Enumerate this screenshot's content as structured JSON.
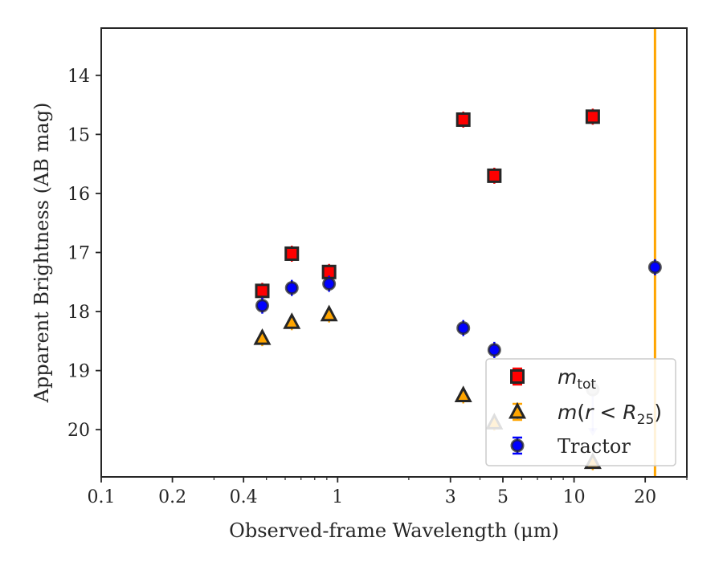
{
  "chart_data": {
    "type": "scatter",
    "xlabel": "Observed-frame Wavelength (μm)",
    "ylabel": "Apparent Brightness (AB mag)",
    "x_scale": "log",
    "xlim": [
      0.1,
      30
    ],
    "ylim": [
      20.8,
      13.2
    ],
    "y_inverted": true,
    "x_ticks": [
      0.1,
      0.2,
      0.4,
      1,
      3,
      5,
      10,
      20
    ],
    "x_tick_labels": [
      "0.1",
      "0.2",
      "0.4",
      "1",
      "3",
      "5",
      "10",
      "20"
    ],
    "y_ticks": [
      14,
      15,
      16,
      17,
      18,
      19,
      20
    ],
    "y_tick_labels": [
      "14",
      "15",
      "16",
      "17",
      "18",
      "19",
      "20"
    ],
    "grid": false,
    "legend_position": "bottom-right",
    "vertical_line": {
      "x": 22,
      "color": "#ffa500"
    },
    "series": [
      {
        "name": "m_tot",
        "legend": {
          "symbol": "m",
          "subscript": "tot"
        },
        "marker": "square",
        "face_color": "#ff0000",
        "edge_color": "#262626",
        "error_color": "#ff0000",
        "points": [
          {
            "x": 0.48,
            "y": 17.65
          },
          {
            "x": 0.64,
            "y": 17.02
          },
          {
            "x": 0.92,
            "y": 17.33
          },
          {
            "x": 3.4,
            "y": 14.75
          },
          {
            "x": 4.6,
            "y": 15.7
          },
          {
            "x": 12.0,
            "y": 14.7
          }
        ]
      },
      {
        "name": "m(r<R25)",
        "legend": {
          "symbol": "m",
          "open": "(",
          "var": "r",
          "lt": " < ",
          "R": "R",
          "subscript": "25",
          "close": ")"
        },
        "marker": "triangle",
        "face_color": "#ffa500",
        "edge_color": "#262626",
        "error_color": "#ffa500",
        "points": [
          {
            "x": 0.48,
            "y": 18.45
          },
          {
            "x": 0.64,
            "y": 18.18
          },
          {
            "x": 0.92,
            "y": 18.05
          },
          {
            "x": 3.4,
            "y": 19.42
          },
          {
            "x": 4.6,
            "y": 19.88
          },
          {
            "x": 12.0,
            "y": 20.55
          }
        ]
      },
      {
        "name": "Tractor",
        "legend": {
          "label": "Tractor"
        },
        "marker": "circle",
        "face_color": "#0000ff",
        "edge_color": "#262626",
        "error_color": "#0000ff",
        "points": [
          {
            "x": 0.48,
            "y": 17.9
          },
          {
            "x": 0.64,
            "y": 17.6
          },
          {
            "x": 0.92,
            "y": 17.53
          },
          {
            "x": 3.4,
            "y": 18.28
          },
          {
            "x": 4.6,
            "y": 18.65
          },
          {
            "x": 12.0,
            "y": 19.32,
            "upper_limit": true
          },
          {
            "x": 22.0,
            "y": 17.25
          }
        ]
      }
    ]
  }
}
